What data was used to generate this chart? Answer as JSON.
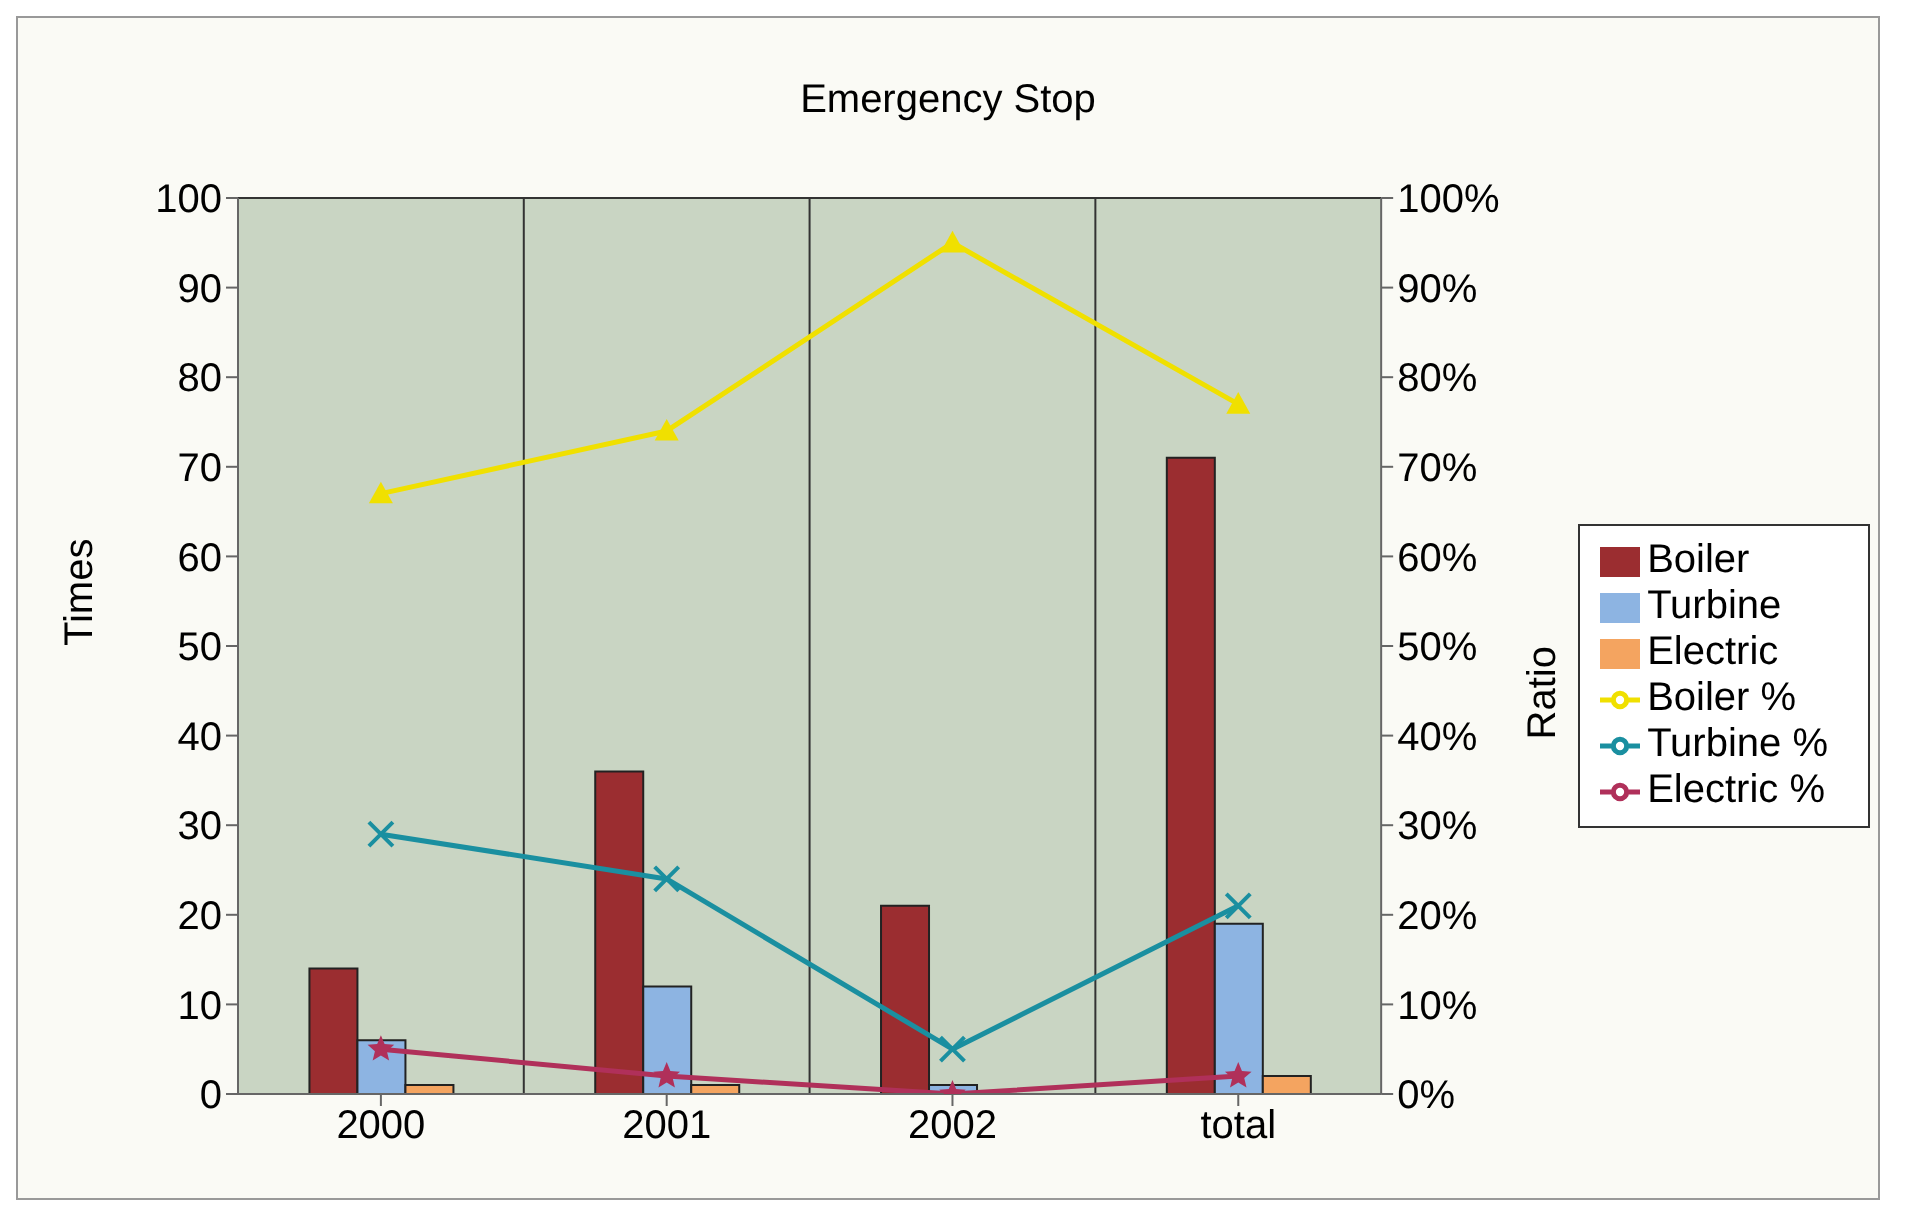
{
  "chart_data": {
    "type": "bar",
    "title": "Emergency Stop",
    "ylabel": "Times",
    "y2label": "Ratio",
    "categories": [
      "2000",
      "2001",
      "2002",
      "total"
    ],
    "series": [
      {
        "name": "Boiler",
        "color": "#9b2d30",
        "values": [
          14,
          36,
          21,
          71
        ]
      },
      {
        "name": "Turbine",
        "color": "#8db4e2",
        "values": [
          6,
          12,
          1,
          19
        ]
      },
      {
        "name": "Electric",
        "color": "#f4a460",
        "values": [
          1,
          1,
          0,
          2
        ]
      },
      {
        "name": "Boiler %",
        "type": "line",
        "axis": "y2",
        "marker": "triangle",
        "color": "#f0e000",
        "values": [
          0.67,
          0.74,
          0.95,
          0.77
        ]
      },
      {
        "name": "Turbine %",
        "type": "line",
        "axis": "y2",
        "marker": "cross",
        "color": "#1a8fa0",
        "values": [
          0.29,
          0.24,
          0.05,
          0.21
        ]
      },
      {
        "name": "Electric %",
        "type": "line",
        "axis": "y2",
        "marker": "star",
        "color": "#b0305a",
        "values": [
          0.05,
          0.02,
          0,
          0.02
        ]
      }
    ],
    "ylim": [
      0,
      100
    ],
    "yticks": [
      0,
      10,
      20,
      30,
      40,
      50,
      60,
      70,
      80,
      90,
      100
    ],
    "y2lim": [
      0,
      1
    ],
    "y2ticks": [
      {
        "value": 0,
        "label": "0%"
      },
      {
        "value": 0.1,
        "label": "10%"
      },
      {
        "value": 0.2,
        "label": "20%"
      },
      {
        "value": 0.3,
        "label": "30%"
      },
      {
        "value": 0.4,
        "label": "40%"
      },
      {
        "value": 0.5,
        "label": "50%"
      },
      {
        "value": 0.6,
        "label": "60%"
      },
      {
        "value": 0.7,
        "label": "70%"
      },
      {
        "value": 0.8,
        "label": "80%"
      },
      {
        "value": 0.9,
        "label": "90%"
      },
      {
        "value": 1,
        "label": "100%"
      }
    ],
    "grid": true,
    "legend": "right"
  }
}
